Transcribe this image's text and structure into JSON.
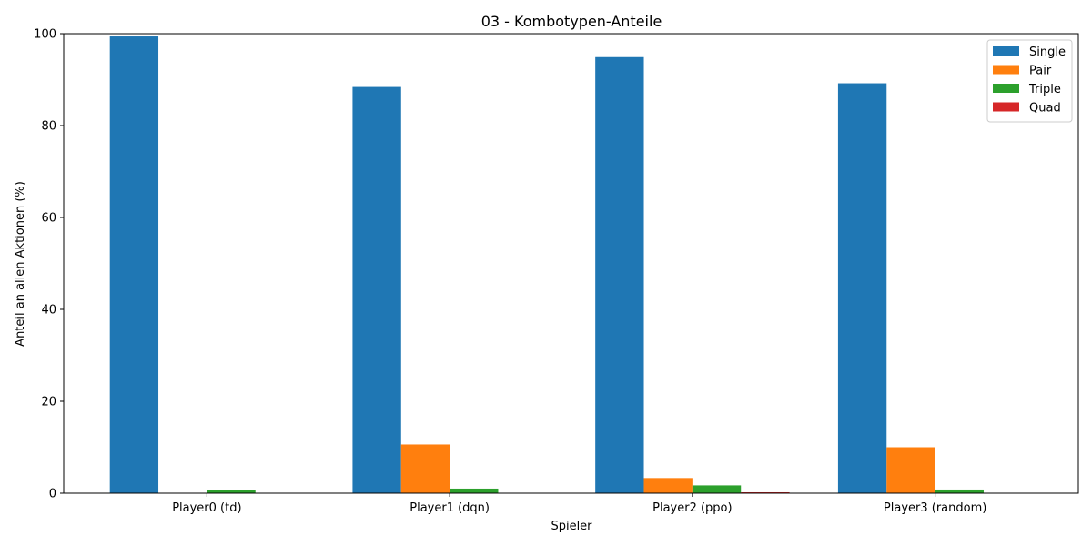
{
  "chart_data": {
    "type": "bar",
    "title": "03 - Kombotypen-Anteile",
    "xlabel": "Spieler",
    "ylabel": "Anteil an allen Aktionen (%)",
    "categories": [
      "Player0 (td)",
      "Player1 (dqn)",
      "Player2 (ppo)",
      "Player3 (random)"
    ],
    "ylim": [
      0,
      100
    ],
    "yticks": [
      0,
      20,
      40,
      60,
      80,
      100
    ],
    "legend_position": "top-right",
    "grid": false,
    "series": [
      {
        "name": "Single",
        "color": "#1f77b4",
        "values": [
          99.4,
          88.4,
          94.9,
          89.2
        ]
      },
      {
        "name": "Pair",
        "color": "#ff7f0e",
        "values": [
          0.0,
          10.6,
          3.3,
          10.0
        ]
      },
      {
        "name": "Triple",
        "color": "#2ca02c",
        "values": [
          0.6,
          1.0,
          1.7,
          0.8
        ]
      },
      {
        "name": "Quad",
        "color": "#d62728",
        "values": [
          0.0,
          0.0,
          0.2,
          0.0
        ]
      }
    ]
  }
}
